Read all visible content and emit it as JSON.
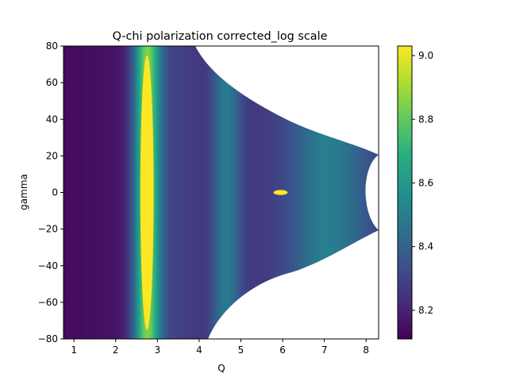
{
  "chart_data": {
    "type": "heatmap",
    "title": "Q-chi polarization corrected_log scale",
    "xlabel": "Q",
    "ylabel": "gamma",
    "xlim": [
      0.75,
      8.3
    ],
    "ylim": [
      -80,
      80
    ],
    "x_ticks": [
      "1",
      "2",
      "3",
      "4",
      "5",
      "6",
      "7",
      "8"
    ],
    "y_ticks": [
      "−80",
      "−60",
      "−40",
      "−20",
      "0",
      "20",
      "40",
      "60",
      "80"
    ],
    "colorbar": {
      "colormap": "viridis",
      "range": [
        8.11,
        9.03
      ],
      "ticks": [
        "8.2",
        "8.4",
        "8.6",
        "8.8",
        "9.0"
      ]
    },
    "features": [
      {
        "kind": "ring",
        "q_center": 2.75,
        "gamma_extent": [
          -75,
          75
        ],
        "value": 9.03
      },
      {
        "kind": "band",
        "q_center": 4.6,
        "value": 8.55
      },
      {
        "kind": "band",
        "q_center": 7.0,
        "value": 8.6
      },
      {
        "kind": "spot",
        "q": 5.95,
        "gamma": 0,
        "value": 9.0
      }
    ],
    "grid": false
  }
}
